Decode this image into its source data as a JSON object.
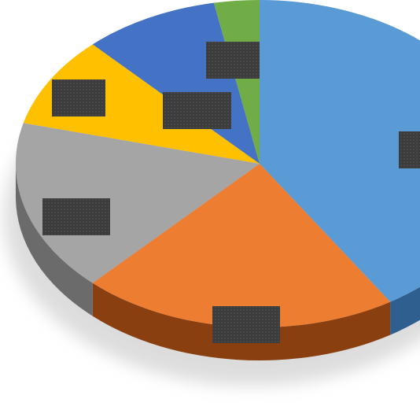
{
  "chart_data": {
    "type": "pie",
    "values": [
      41,
      21,
      17,
      9,
      9,
      3
    ],
    "colors": [
      "#5b9bd5",
      "#ed7d31",
      "#a5a5a5",
      "#ffc000",
      "#4472c4",
      "#70ad47"
    ],
    "side_colors": [
      "#2e5f8f",
      "#8a3f10",
      "#6b6b6b",
      "#a07800",
      "#2a4a85",
      "#437030"
    ]
  }
}
